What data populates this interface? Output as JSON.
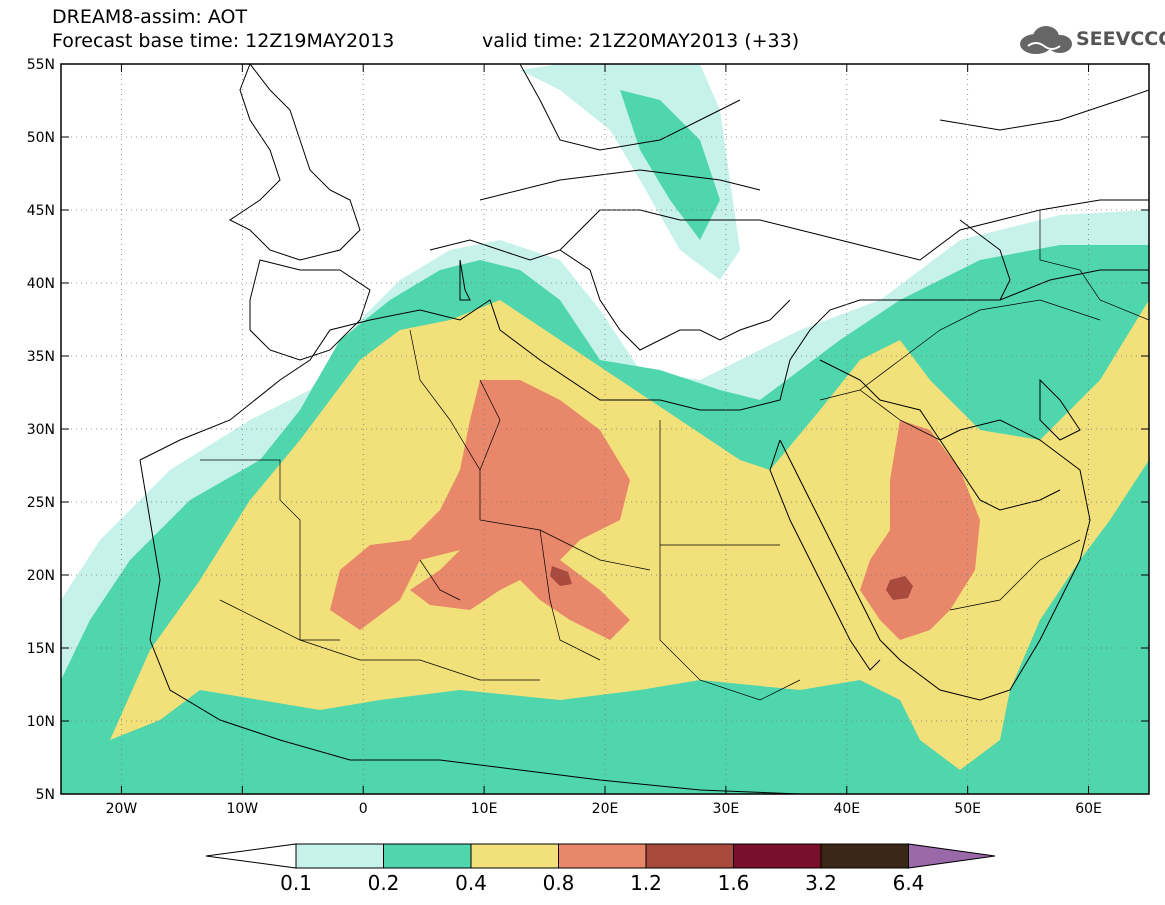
{
  "title": {
    "line1": "DREAM8-assim: AOT",
    "line2": "Forecast base time: 12Z19MAY2013",
    "valid": "valid time: 21Z20MAY2013 (+33)"
  },
  "logo": {
    "text": "SEEVCCC",
    "icon": "cloud-icon"
  },
  "map": {
    "lon_range": [
      -25,
      65
    ],
    "lat_range": [
      5,
      55
    ],
    "lat_ticks": [
      "55N",
      "50N",
      "45N",
      "40N",
      "35N",
      "30N",
      "25N",
      "20N",
      "15N",
      "10N",
      "5N"
    ],
    "lon_ticks": [
      "20W",
      "10W",
      "0",
      "10E",
      "20E",
      "30E",
      "40E",
      "50E",
      "60E"
    ],
    "grid": "dotted"
  },
  "colorbar": {
    "labels": [
      "0.1",
      "0.2",
      "0.4",
      "0.8",
      "1.2",
      "1.6",
      "3.2",
      "6.4"
    ],
    "colors": [
      "#c6f2ea",
      "#4fd6ac",
      "#f2e07a",
      "#e8876a",
      "#a84a3e",
      "#7a0f2c",
      "#3b2717",
      "#9a6aa8"
    ],
    "under_color": "#ffffff"
  },
  "colors": {
    "c01": "#c6f2ea",
    "c02": "#4fd6ac",
    "c04": "#f2e07a",
    "c08": "#e8876a",
    "c12": "#a84a3e"
  }
}
